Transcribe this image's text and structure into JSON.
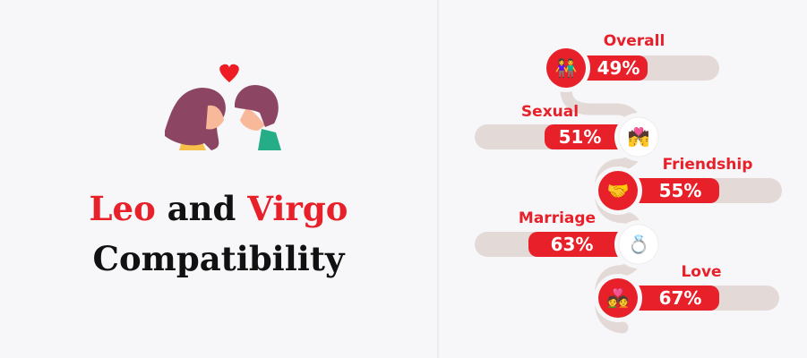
{
  "title": {
    "part1": "Leo",
    "part2": " and ",
    "part3": "Virgo",
    "line2": "Compatibility"
  },
  "colors": {
    "accent": "#e8202a",
    "track": "#e3dad8",
    "text": "#111111"
  },
  "chart_data": {
    "type": "bar",
    "categories": [
      "Overall",
      "Sexual",
      "Friendship",
      "Marriage",
      "Love"
    ],
    "values": [
      49,
      51,
      55,
      63,
      67
    ],
    "value_labels": [
      "49%",
      "51%",
      "55%",
      "63%",
      "67%"
    ],
    "icons": [
      "couple-icon",
      "kiss-icon",
      "handshake-icon",
      "rings-icon",
      "hearts-couple-icon"
    ],
    "unit": "%",
    "ylim": [
      0,
      100
    ]
  }
}
